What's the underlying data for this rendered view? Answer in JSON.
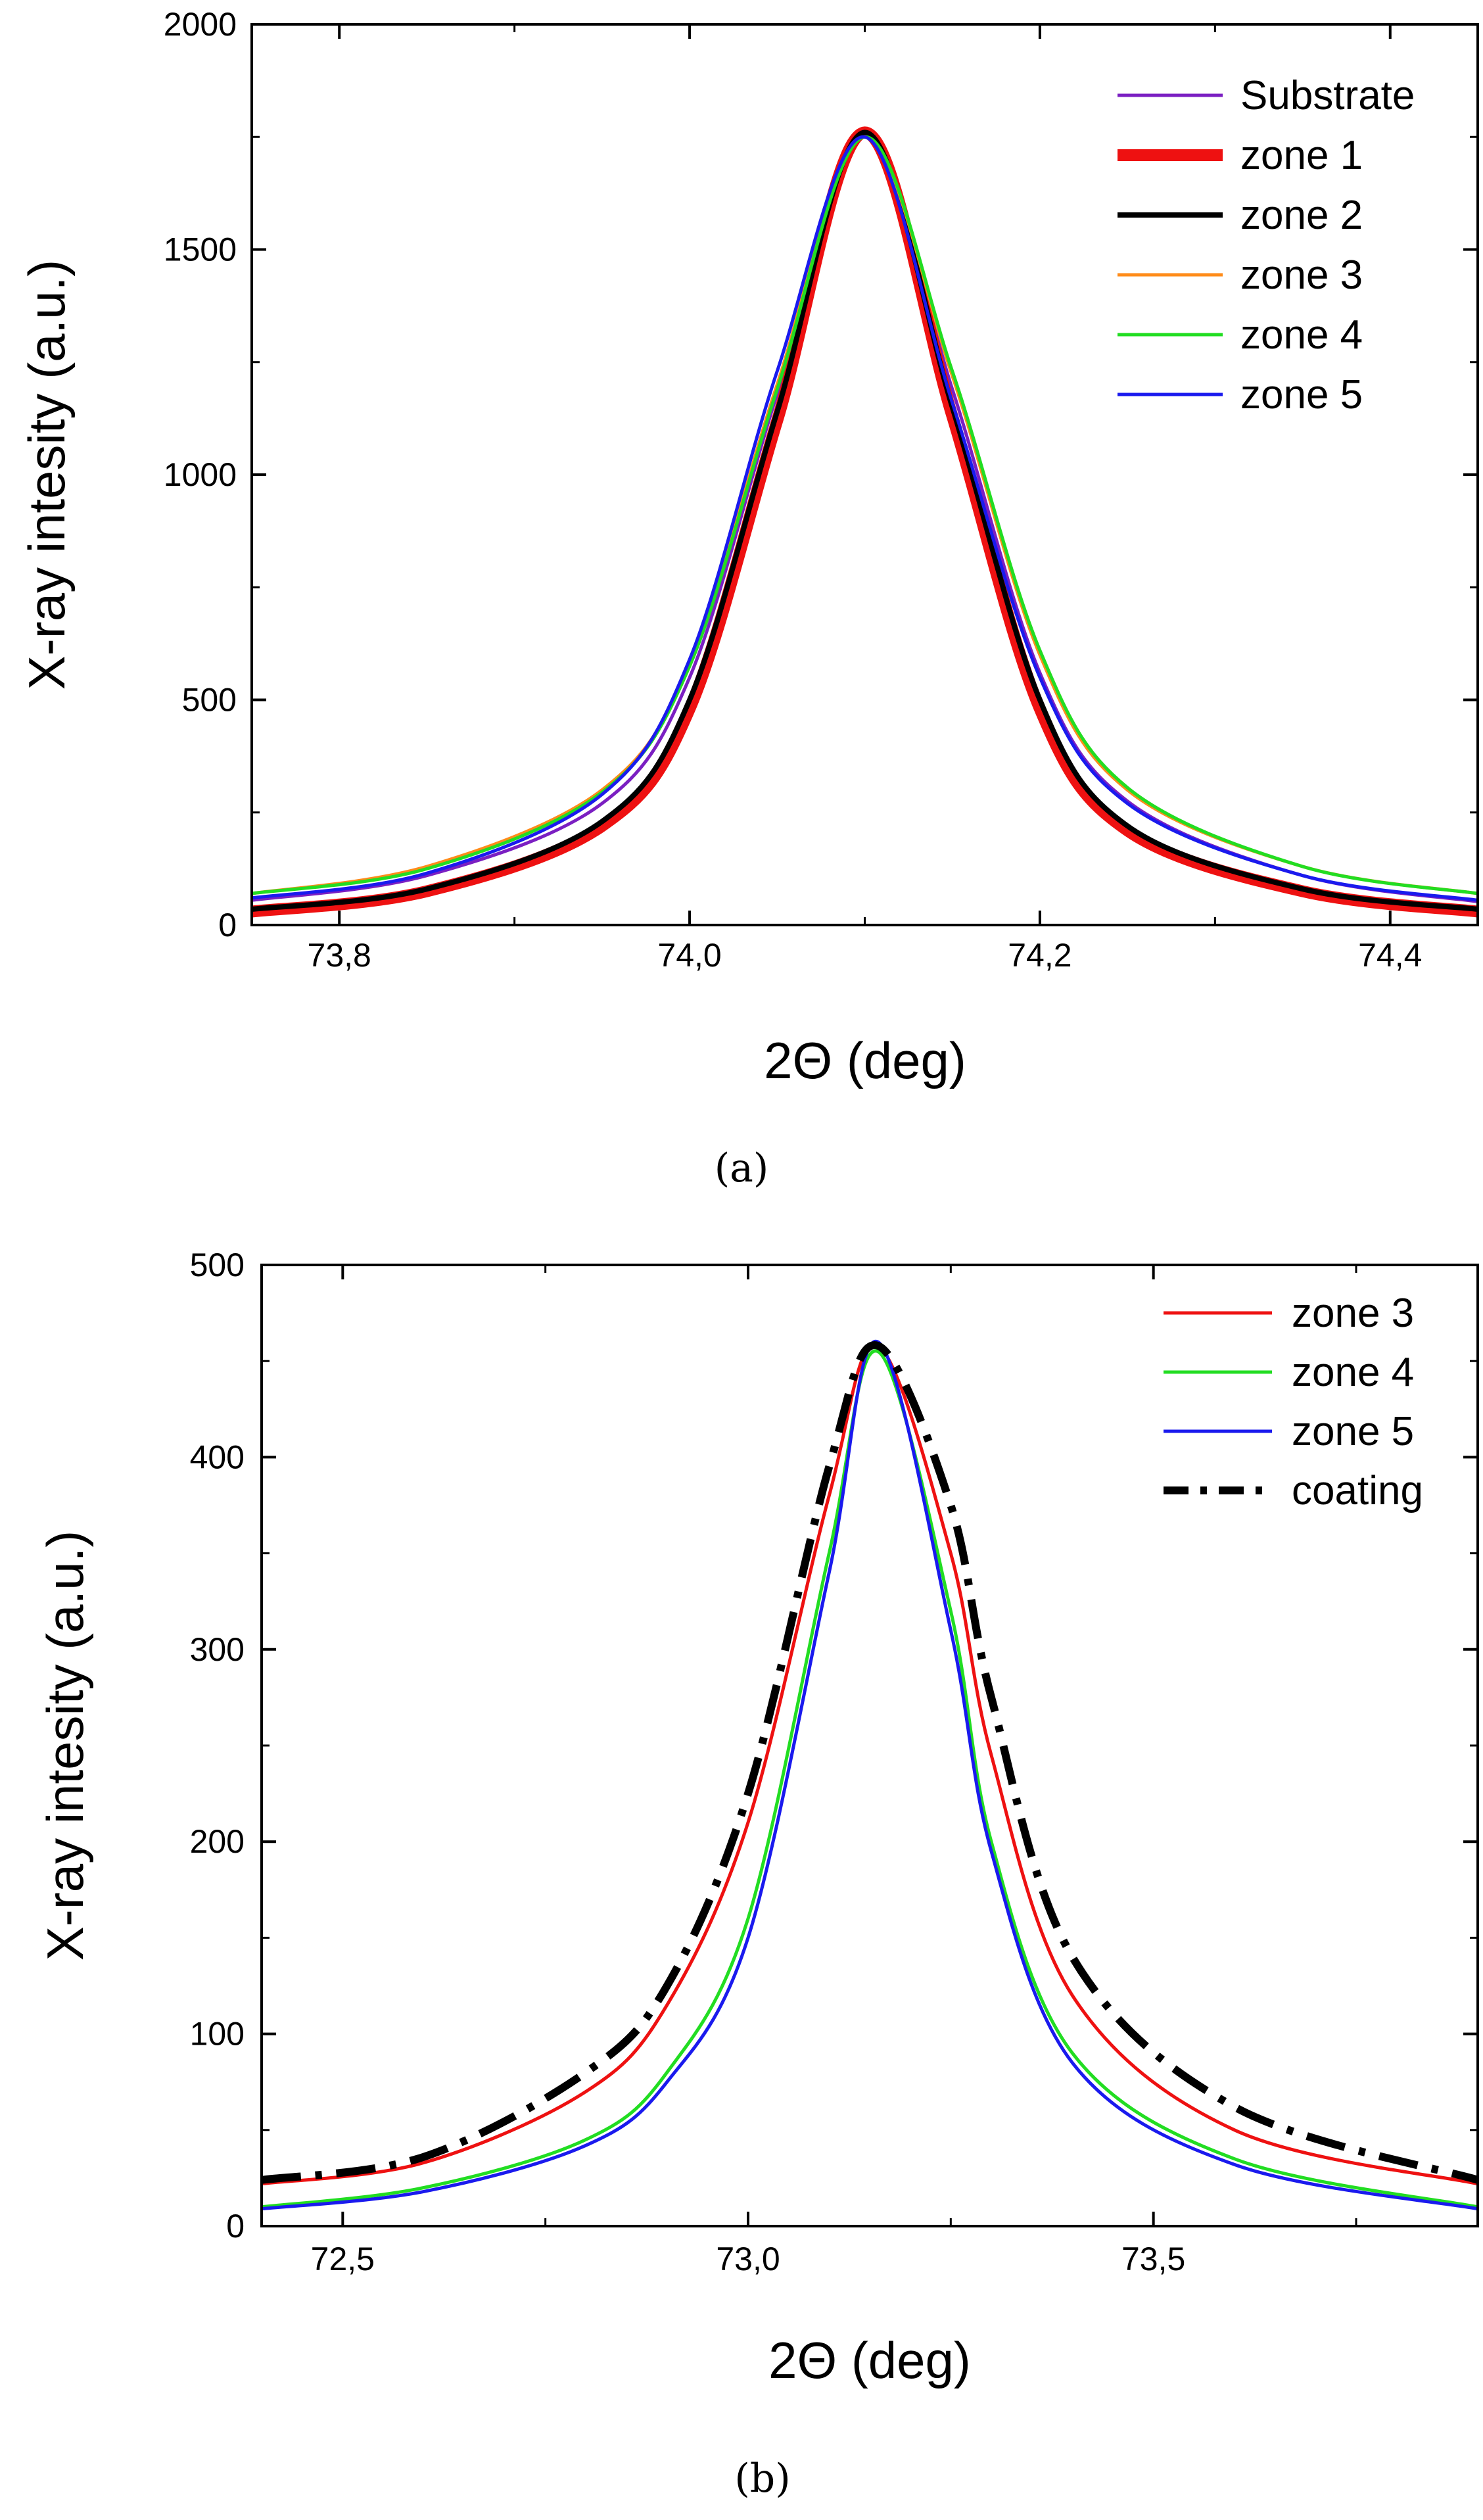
{
  "chart_data": [
    {
      "id": "a",
      "type": "line",
      "caption": "(a)",
      "xlabel": "2Θ (deg)",
      "ylabel": "X-ray intesity (a.u.)",
      "xlim": [
        73.75,
        74.45
      ],
      "ylim": [
        0,
        2000
      ],
      "xticks": [
        73.8,
        74.0,
        74.2,
        74.4
      ],
      "xtick_labels": [
        "73,8",
        "74,0",
        "74,2",
        "74,4"
      ],
      "yticks": [
        0,
        500,
        1000,
        1500,
        2000
      ],
      "ytick_labels": [
        "0",
        "500",
        "1000",
        "1500",
        "2000"
      ],
      "legend_position": "top-right",
      "series": [
        {
          "name": "Substrate",
          "color": "#7b1fc2",
          "width": 5,
          "dash": "",
          "x": [
            73.75,
            73.85,
            73.95,
            74.0,
            74.05,
            74.1,
            74.15,
            74.2,
            74.25,
            74.35,
            74.45
          ],
          "y": [
            55,
            110,
            270,
            550,
            1180,
            1760,
            1190,
            560,
            275,
            110,
            52
          ]
        },
        {
          "name": "zone 1",
          "color": "#ee1111",
          "width": 18,
          "dash": "",
          "x": [
            73.75,
            73.85,
            73.95,
            74.0,
            74.05,
            74.1,
            74.15,
            74.2,
            74.25,
            74.35,
            74.45
          ],
          "y": [
            30,
            75,
            220,
            480,
            1120,
            1760,
            1130,
            480,
            210,
            75,
            30
          ]
        },
        {
          "name": "zone 2",
          "color": "#000000",
          "width": 8,
          "dash": "",
          "x": [
            73.75,
            73.85,
            73.95,
            74.0,
            74.05,
            74.1,
            74.15,
            74.2,
            74.25,
            74.35,
            74.45
          ],
          "y": [
            35,
            80,
            230,
            500,
            1140,
            1760,
            1150,
            500,
            220,
            80,
            35
          ]
        },
        {
          "name": "zone 3",
          "color": "#ff8c1a",
          "width": 5,
          "dash": "",
          "x": [
            73.75,
            73.85,
            73.95,
            74.0,
            74.05,
            74.1,
            74.15,
            74.2,
            74.25,
            74.35,
            74.45
          ],
          "y": [
            70,
            130,
            300,
            580,
            1200,
            1750,
            1220,
            600,
            300,
            130,
            70
          ]
        },
        {
          "name": "zone 4",
          "color": "#22dd22",
          "width": 5,
          "dash": "",
          "x": [
            73.75,
            73.85,
            73.95,
            74.0,
            74.05,
            74.1,
            74.15,
            74.2,
            74.25,
            74.35,
            74.45
          ],
          "y": [
            70,
            125,
            295,
            575,
            1190,
            1750,
            1230,
            610,
            305,
            130,
            70
          ]
        },
        {
          "name": "zone 5",
          "color": "#1a1aee",
          "width": 5,
          "dash": "",
          "x": [
            73.75,
            73.85,
            73.95,
            74.0,
            74.05,
            74.1,
            74.15,
            74.2,
            74.25,
            74.35,
            74.45
          ],
          "y": [
            60,
            115,
            290,
            590,
            1230,
            1750,
            1160,
            550,
            270,
            110,
            55
          ]
        }
      ]
    },
    {
      "id": "b",
      "type": "line",
      "caption": "(b)",
      "xlabel": "2Θ (deg)",
      "ylabel": "X-ray intesity (a.u.)",
      "xlim": [
        72.4,
        73.9
      ],
      "ylim": [
        0,
        500
      ],
      "xticks": [
        72.5,
        73.0,
        73.5
      ],
      "xtick_labels": [
        "72,5",
        "73,0",
        "73,5"
      ],
      "yticks": [
        0,
        100,
        200,
        300,
        400,
        500
      ],
      "ytick_labels": [
        "0",
        "100",
        "200",
        "300",
        "400",
        "500"
      ],
      "legend_position": "top-right",
      "series": [
        {
          "name": "zone 3",
          "color": "#ee1111",
          "width": 5,
          "dash": "",
          "x": [
            72.4,
            72.6,
            72.8,
            72.9,
            73.0,
            73.1,
            73.16,
            73.25,
            73.3,
            73.4,
            73.6,
            73.9
          ],
          "y": [
            22,
            33,
            70,
            115,
            210,
            380,
            458,
            350,
            245,
            120,
            50,
            22
          ]
        },
        {
          "name": "zone 4",
          "color": "#22dd22",
          "width": 5,
          "dash": "",
          "x": [
            72.4,
            72.6,
            72.8,
            72.9,
            73.0,
            73.1,
            73.16,
            73.25,
            73.3,
            73.4,
            73.6,
            73.9
          ],
          "y": [
            10,
            20,
            45,
            80,
            160,
            350,
            455,
            320,
            200,
            90,
            35,
            10
          ]
        },
        {
          "name": "zone 5",
          "color": "#1a1aee",
          "width": 5,
          "dash": "",
          "x": [
            72.4,
            72.6,
            72.8,
            72.9,
            73.0,
            73.1,
            73.16,
            73.25,
            73.3,
            73.4,
            73.6,
            73.9
          ],
          "y": [
            9,
            18,
            42,
            75,
            150,
            340,
            460,
            310,
            195,
            85,
            32,
            9
          ]
        },
        {
          "name": "coating",
          "color": "#000000",
          "width": 12,
          "dash": "60,22,10,22",
          "x": [
            72.4,
            72.6,
            72.8,
            72.9,
            73.0,
            73.1,
            73.16,
            73.25,
            73.3,
            73.4,
            73.6,
            73.9
          ],
          "y": [
            24,
            36,
            80,
            125,
            225,
            395,
            458,
            375,
            275,
            140,
            62,
            24
          ]
        }
      ]
    }
  ]
}
